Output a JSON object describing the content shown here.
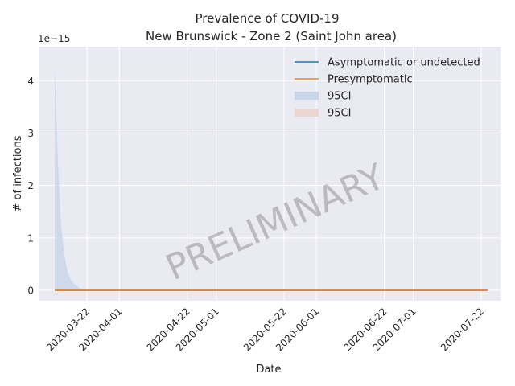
{
  "chart_data": {
    "type": "line",
    "title_line1": "Prevalence of COVID-19",
    "title_line2": "New Brunswick - Zone 2 (Saint John area)",
    "xlabel": "Date",
    "ylabel": "# of infections",
    "y_offset_label": "1e−15",
    "watermark": "PRELIMINARY",
    "xlim": [
      "2020-03-07",
      "2020-07-28"
    ],
    "ylim": [
      -0.2,
      4.65
    ],
    "y_scale_note": "values shown in units of 1e-15",
    "y_ticks": [
      0,
      1,
      2,
      3,
      4
    ],
    "x_ticks": [
      "2020-03-22",
      "2020-04-01",
      "2020-04-22",
      "2020-05-01",
      "2020-05-22",
      "2020-06-01",
      "2020-06-22",
      "2020-07-01",
      "2020-07-22"
    ],
    "grid": true,
    "legend_position": "top-right",
    "legend": [
      {
        "label": "Asymptomatic or undetected",
        "kind": "line",
        "color": "#1f77b4"
      },
      {
        "label": "Presymptomatic",
        "kind": "line",
        "color": "#ff7f0e"
      },
      {
        "label": "95CI",
        "kind": "band",
        "color": "#c9d6e8"
      },
      {
        "label": "95CI",
        "kind": "band",
        "color": "#ead5d0"
      }
    ],
    "series": [
      {
        "name": "Asymptomatic or undetected",
        "color": "#1f77b4",
        "x": [
          "2020-03-12",
          "2020-07-24"
        ],
        "y": [
          0,
          0
        ]
      },
      {
        "name": "Presymptomatic",
        "color": "#ff7f0e",
        "x": [
          "2020-03-12",
          "2020-07-24"
        ],
        "y": [
          0,
          0
        ]
      }
    ],
    "ci_band": {
      "color": "#c9d6e8",
      "x": [
        "2020-03-12",
        "2020-03-13",
        "2020-03-14",
        "2020-03-15",
        "2020-03-16",
        "2020-03-17",
        "2020-03-18",
        "2020-03-19",
        "2020-03-20",
        "2020-03-22"
      ],
      "upper": [
        4.2,
        2.4,
        1.2,
        0.65,
        0.35,
        0.2,
        0.12,
        0.07,
        0.03,
        0
      ],
      "lower": [
        0,
        0,
        0,
        0,
        0,
        0,
        0,
        0,
        0,
        0
      ]
    }
  }
}
